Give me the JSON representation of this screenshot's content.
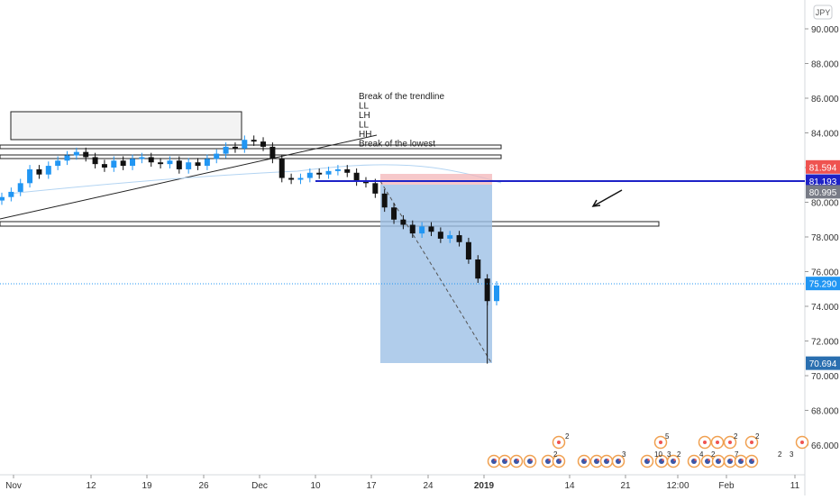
{
  "chart_data": {
    "type": "candlestick",
    "currency_badge": "JPY",
    "y_axis": {
      "ticks": [
        90,
        88,
        86,
        84,
        82,
        80,
        78,
        76,
        74,
        72,
        70,
        68,
        66
      ],
      "tick_labels": [
        "90.000",
        "88.000",
        "86.000",
        "84.000",
        "82.000",
        "80.000",
        "78.000",
        "76.000",
        "74.000",
        "72.000",
        "70.000",
        "68.000",
        "66.000"
      ],
      "range": [
        64.5,
        92
      ]
    },
    "x_axis": {
      "tick_labels": [
        "Nov",
        "12",
        "19",
        "26",
        "Dec",
        "10",
        "17",
        "24",
        "2019",
        "14",
        "21",
        "12:00",
        "Feb",
        "11"
      ],
      "bold_label": "2019"
    },
    "price_labels": [
      {
        "value": "81.594",
        "color": "#ef5350"
      },
      {
        "value": "81.193",
        "color": "#1e22c7"
      },
      {
        "value": "80.995",
        "color": "#787b86"
      },
      {
        "value": "75.290",
        "color": "#2196f3"
      },
      {
        "value": "70.694",
        "color": "#2a6fb0"
      }
    ],
    "annotation_lines": [
      "Break of the trendline",
      "LL",
      "LH",
      "LL",
      "HH",
      "Break of the lowest"
    ],
    "series_close": [
      [
        0,
        80.3
      ],
      [
        1,
        80.6
      ],
      [
        2,
        81.1
      ],
      [
        3,
        81.9
      ],
      [
        4,
        81.6
      ],
      [
        5,
        82.1
      ],
      [
        6,
        82.4
      ],
      [
        7,
        82.7
      ],
      [
        8,
        82.9
      ],
      [
        9,
        82.6
      ],
      [
        10,
        82.2
      ],
      [
        11,
        82.0
      ],
      [
        12,
        82.4
      ],
      [
        13,
        82.1
      ],
      [
        14,
        82.5
      ],
      [
        15,
        82.6
      ],
      [
        16,
        82.3
      ],
      [
        17,
        82.2
      ],
      [
        18,
        82.4
      ],
      [
        19,
        81.9
      ],
      [
        20,
        82.3
      ],
      [
        21,
        82.1
      ],
      [
        22,
        82.5
      ],
      [
        23,
        82.8
      ],
      [
        24,
        83.2
      ],
      [
        25,
        83.1
      ],
      [
        26,
        83.6
      ],
      [
        27,
        83.5
      ],
      [
        28,
        83.2
      ],
      [
        29,
        82.5
      ],
      [
        30,
        81.4
      ],
      [
        31,
        81.3
      ],
      [
        32,
        81.4
      ],
      [
        33,
        81.7
      ],
      [
        34,
        81.6
      ],
      [
        35,
        81.8
      ],
      [
        36,
        81.9
      ],
      [
        37,
        81.7
      ],
      [
        38,
        81.2
      ],
      [
        39,
        81.1
      ],
      [
        40,
        80.5
      ],
      [
        41,
        79.7
      ],
      [
        42,
        79.0
      ],
      [
        43,
        78.7
      ],
      [
        44,
        78.2
      ],
      [
        45,
        78.6
      ],
      [
        46,
        78.3
      ],
      [
        47,
        77.9
      ],
      [
        48,
        78.1
      ],
      [
        49,
        77.7
      ],
      [
        50,
        76.7
      ],
      [
        51,
        75.6
      ],
      [
        52,
        74.3
      ],
      [
        53,
        75.2
      ]
    ],
    "events": [
      {
        "label": "2"
      },
      {
        "label": "5"
      },
      {
        "label": "2"
      },
      {
        "label": "3"
      },
      {
        "label": "10"
      },
      {
        "label": "3"
      },
      {
        "label": "2"
      },
      {
        "label": "4"
      },
      {
        "label": "2"
      },
      {
        "label": "7"
      },
      {
        "label": "2"
      },
      {
        "label": "2"
      },
      {
        "label": "3"
      },
      {
        "label": "2"
      }
    ]
  }
}
